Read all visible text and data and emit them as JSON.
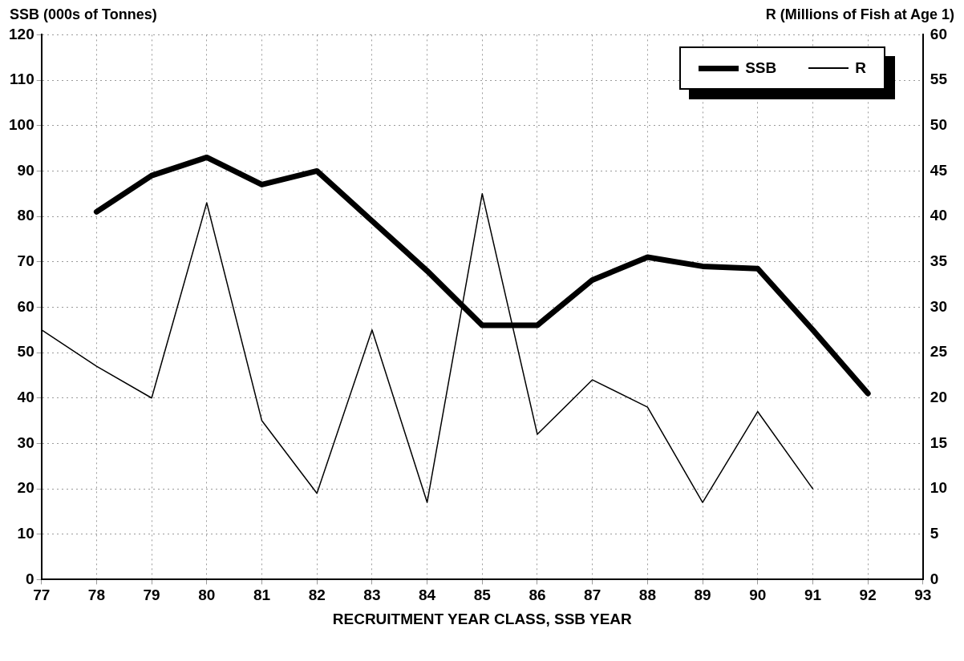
{
  "chart_data": {
    "type": "line",
    "xlabel": "RECRUITMENT YEAR CLASS, SSB YEAR",
    "ylabel": "SSB (000s of Tonnes)",
    "y2label": "R (Millions of Fish at Age 1)",
    "series": [
      {
        "name": "SSB",
        "color": "#000000",
        "x": [
          78,
          79,
          80,
          81,
          82,
          83,
          84,
          85,
          86,
          87,
          88,
          89,
          90,
          91,
          92
        ],
        "values": [
          81,
          89,
          93,
          87,
          90,
          79,
          68,
          56,
          56,
          66,
          71,
          69,
          68.5,
          55,
          41
        ]
      },
      {
        "name": "R",
        "color": "#000000",
        "axis": "y2",
        "x": [
          77,
          78,
          79,
          80,
          81,
          82,
          83,
          84,
          85,
          86,
          87,
          88,
          89,
          90,
          91
        ],
        "values": [
          27.5,
          23.5,
          20,
          41.5,
          17.5,
          9.5,
          27.5,
          8.5,
          42.5,
          16,
          22,
          19,
          8.5,
          18.5,
          10
        ]
      }
    ],
    "xlim": [
      77,
      93
    ],
    "xticks": [
      77,
      78,
      79,
      80,
      81,
      82,
      83,
      84,
      85,
      86,
      87,
      88,
      89,
      90,
      91,
      92,
      93
    ],
    "ylim": [
      0,
      120
    ],
    "yticks": [
      0,
      10,
      20,
      30,
      40,
      50,
      60,
      70,
      80,
      90,
      100,
      110,
      120
    ],
    "y2lim": [
      0,
      60
    ],
    "y2ticks": [
      0,
      5,
      10,
      15,
      20,
      25,
      30,
      35,
      40,
      45,
      50,
      55,
      60
    ],
    "grid": true,
    "legend": "top right",
    "marker": "none",
    "line_style": "solid"
  }
}
